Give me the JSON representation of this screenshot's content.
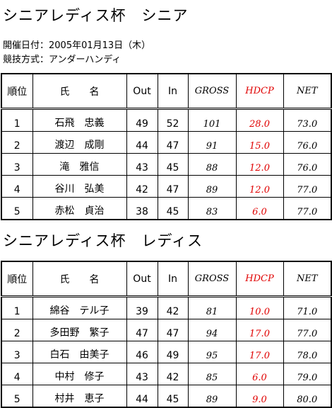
{
  "header": {
    "title": "シニアレディス杯　シニア",
    "date": "開催日付：2005年01月13日（木）",
    "format": "競技方式：アンダーハンディ"
  },
  "tables": [
    {
      "columns": [
        "順位",
        "氏　　名",
        "Out",
        "In",
        "GROSS",
        "HDCP",
        "NET"
      ],
      "rows": [
        [
          "1",
          "石飛　忠義",
          "49",
          "52",
          "101",
          "28.0",
          "73.0"
        ],
        [
          "2",
          "渡辺　成剛",
          "44",
          "47",
          "91",
          "15.0",
          "76.0"
        ],
        [
          "3",
          "滝　雅信",
          "43",
          "45",
          "88",
          "12.0",
          "76.0"
        ],
        [
          "4",
          "谷川　弘美",
          "42",
          "47",
          "89",
          "12.0",
          "77.0"
        ],
        [
          "5",
          "赤松　貞治",
          "38",
          "45",
          "83",
          "6.0",
          "77.0"
        ]
      ]
    },
    {
      "title": "シニアレディス杯　レディス",
      "columns": [
        "順位",
        "氏　　名",
        "Out",
        "In",
        "GROSS",
        "HDCP",
        "NET"
      ],
      "rows": [
        [
          "1",
          "綿谷　テル子",
          "39",
          "42",
          "81",
          "10.0",
          "71.0"
        ],
        [
          "2",
          "多田野　繁子",
          "47",
          "47",
          "94",
          "17.0",
          "77.0"
        ],
        [
          "3",
          "白石　由美子",
          "46",
          "49",
          "95",
          "17.0",
          "78.0"
        ],
        [
          "4",
          "中村　修子",
          "43",
          "42",
          "85",
          "6.0",
          "79.0"
        ],
        [
          "5",
          "村井　恵子",
          "44",
          "45",
          "89",
          "9.0",
          "80.0"
        ]
      ]
    }
  ]
}
